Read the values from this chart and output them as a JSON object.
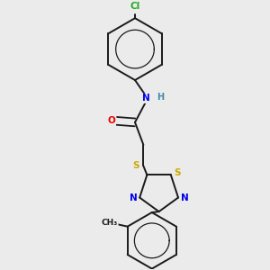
{
  "background_color": "#ebebeb",
  "bond_color": "#1a1a1a",
  "atom_colors": {
    "C": "#1a1a1a",
    "N": "#0000ee",
    "O": "#ee0000",
    "S": "#ccaa00",
    "Cl": "#22aa22",
    "H": "#4488aa"
  },
  "figsize": [
    3.0,
    3.0
  ],
  "dpi": 100
}
